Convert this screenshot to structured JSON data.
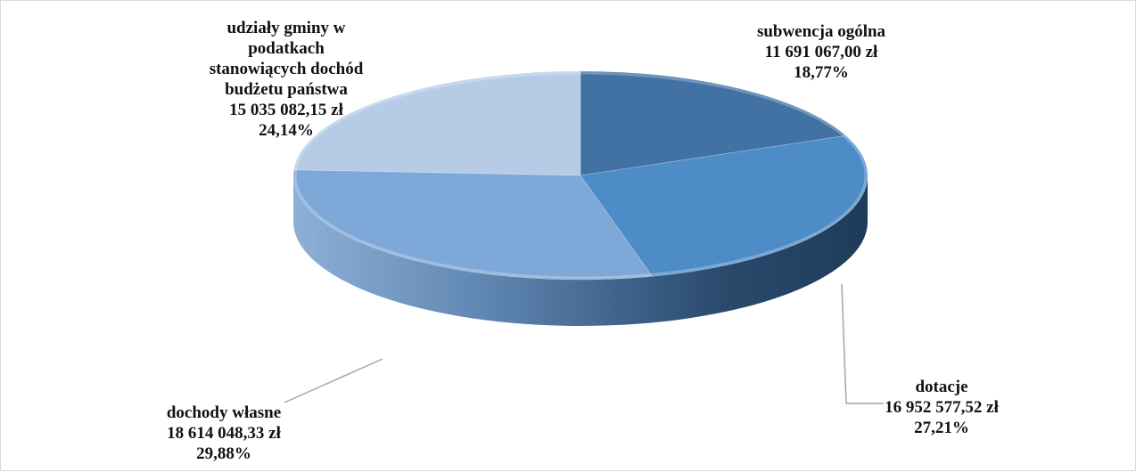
{
  "chart_data": {
    "type": "pie",
    "title": "",
    "style": "3d",
    "slices": [
      {
        "label_lines": [
          "subwencja ogólna"
        ],
        "amount": "11 691 067,00 zł",
        "value": 11691067.0,
        "percent": "18,77%",
        "color": "#4272a4"
      },
      {
        "label_lines": [
          "dotacje"
        ],
        "amount": "16 952 577,52 zł",
        "value": 16952577.52,
        "percent": "27,21%",
        "color": "#4d8cc6"
      },
      {
        "label_lines": [
          "dochody własne"
        ],
        "amount": "18 614 048,33 zł",
        "value": 18614048.33,
        "percent": "29,88%",
        "color": "#7ea8d8"
      },
      {
        "label_lines": [
          "udziały gminy w",
          "podatkach",
          "stanowiących dochód",
          "budżetu państwa"
        ],
        "amount": "15 035 082,15 zł",
        "value": 15035082.15,
        "percent": "24,14%",
        "color": "#b6cbe6"
      }
    ]
  }
}
